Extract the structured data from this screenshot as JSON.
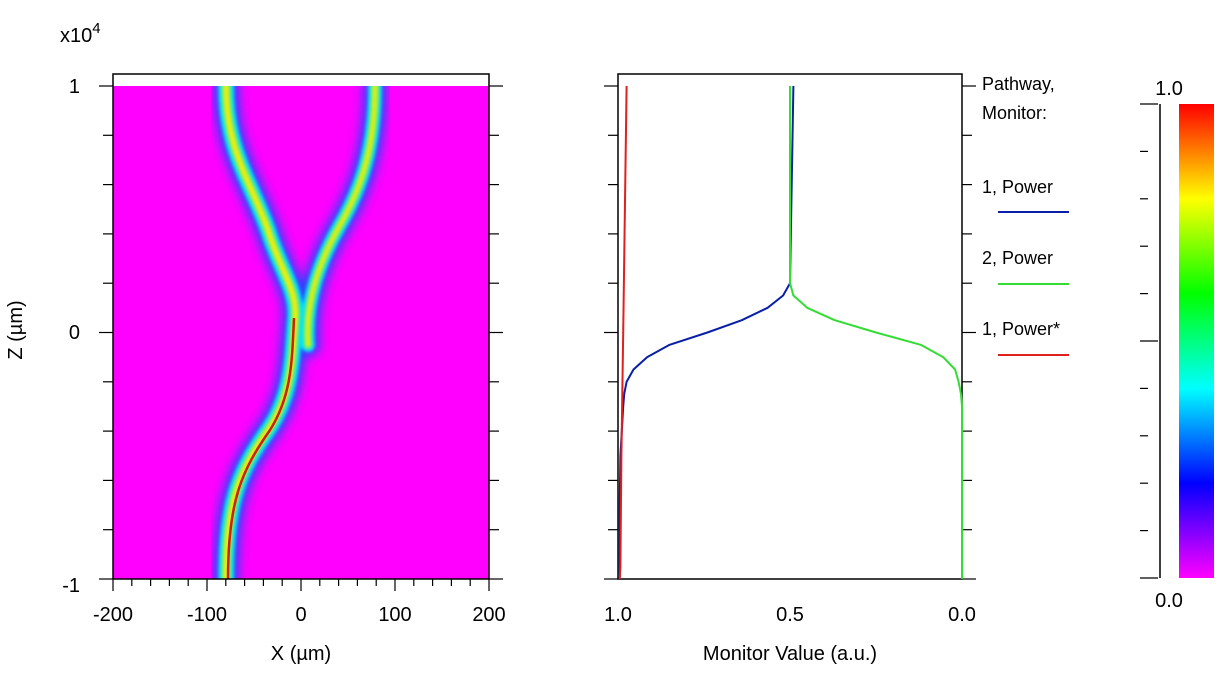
{
  "chart_data": [
    {
      "type": "heatmap",
      "exponent_label": "x10",
      "exponent_power": "4",
      "xlabel": "X (µm)",
      "ylabel": "Z (µm)",
      "xlim": [
        -200,
        200
      ],
      "ylim": [
        -1,
        1
      ],
      "x_ticks": [
        "-200",
        "-100",
        "0",
        "100",
        "200"
      ],
      "y_ticks": [
        "-1",
        "0",
        "1"
      ],
      "description_of_paths": {
        "input_guide_x_at_z_minus1": -80,
        "branch_point_z": 0,
        "branch_left_x_at_z1": -80,
        "branch_right_x_at_z1": 80
      }
    },
    {
      "type": "line",
      "xlabel": "Monitor Value (a.u.)",
      "x_ticks": [
        "1.0",
        "0.5",
        "0.0"
      ],
      "xlim": [
        1.0,
        0.0
      ],
      "ylim": [
        -1,
        1
      ],
      "legend_title_line1": "Pathway,",
      "legend_title_line2": "Monitor:",
      "series": [
        {
          "name": "1, Power",
          "color": "#0a1fa8",
          "z": [
            -1.0,
            -0.9,
            -0.8,
            -0.7,
            -0.5,
            -0.3,
            -0.25,
            -0.2,
            -0.15,
            -0.1,
            -0.05,
            0.0,
            0.05,
            0.1,
            0.15,
            0.2,
            1.0
          ],
          "values": [
            0.995,
            0.995,
            0.995,
            0.995,
            0.993,
            0.985,
            0.982,
            0.975,
            0.955,
            0.915,
            0.85,
            0.74,
            0.64,
            0.565,
            0.52,
            0.5,
            0.49
          ]
        },
        {
          "name": "2, Power",
          "color": "#33dd33",
          "z": [
            -1.0,
            -0.5,
            -0.3,
            -0.25,
            -0.2,
            -0.15,
            -0.1,
            -0.05,
            0.0,
            0.05,
            0.1,
            0.15,
            0.2,
            1.0
          ],
          "values": [
            0.0,
            0.0,
            0.0,
            0.003,
            0.01,
            0.02,
            0.055,
            0.12,
            0.25,
            0.37,
            0.45,
            0.49,
            0.5,
            0.5
          ]
        },
        {
          "name": "1, Power*",
          "color": "#e0201a",
          "z": [
            -1.0,
            -0.95,
            -0.5,
            0.0,
            0.5,
            1.0
          ],
          "values": [
            0.995,
            0.993,
            0.99,
            0.985,
            0.98,
            0.975
          ]
        }
      ]
    },
    {
      "type": "colorbar",
      "max_label": "1.0",
      "min_label": "0.0",
      "colors": [
        "#ff00ff",
        "#0000ff",
        "#00ffff",
        "#00ff00",
        "#ffff00",
        "#ff0000"
      ]
    }
  ]
}
